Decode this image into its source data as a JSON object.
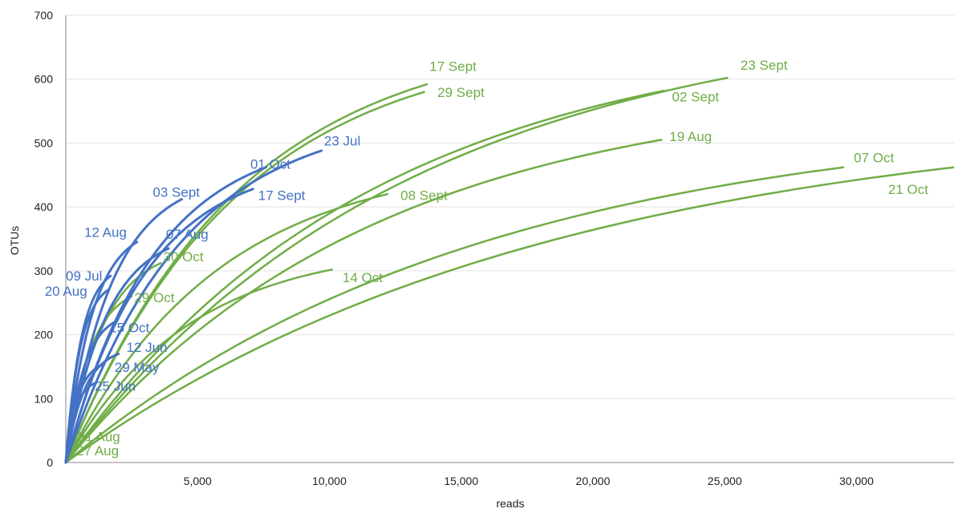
{
  "chart_data": {
    "type": "line",
    "title": "",
    "xlabel": "reads",
    "ylabel": "OTUs",
    "xlim": [
      0,
      33700
    ],
    "ylim": [
      0,
      700
    ],
    "xticks": [
      5000,
      10000,
      15000,
      20000,
      25000,
      30000
    ],
    "xtick_labels": [
      "5,000",
      "10,000",
      "15,000",
      "20,000",
      "25,000",
      "30,000"
    ],
    "yticks": [
      0,
      100,
      200,
      300,
      400,
      500,
      600,
      700
    ],
    "ytick_labels": [
      "0",
      "100",
      "200",
      "300",
      "400",
      "500",
      "600",
      "700"
    ],
    "grid": "horizontal",
    "legend": "none",
    "colors": {
      "blue": "#4472C4",
      "green": "#70AD47",
      "grid": "#e3e3e3",
      "axis": "#888888"
    },
    "series": [
      {
        "name": "17 Sept",
        "color": "green",
        "end_x": 13700,
        "end_y": 592
      },
      {
        "name": "29 Sept",
        "color": "green",
        "end_x": 13600,
        "end_y": 580
      },
      {
        "name": "23 Sept",
        "color": "green",
        "end_x": 25100,
        "end_y": 602
      },
      {
        "name": "02 Sept",
        "color": "green",
        "end_x": 22700,
        "end_y": 582
      },
      {
        "name": "19 Aug",
        "color": "green",
        "end_x": 22600,
        "end_y": 505
      },
      {
        "name": "07 Oct",
        "color": "green",
        "end_x": 29500,
        "end_y": 462
      },
      {
        "name": "21 Oct",
        "color": "green",
        "end_x": 33700,
        "end_y": 462
      },
      {
        "name": "08 Sept",
        "color": "green",
        "end_x": 12200,
        "end_y": 420
      },
      {
        "name": "14 Oct",
        "color": "green",
        "end_x": 10100,
        "end_y": 302
      },
      {
        "name": "30 Oct",
        "color": "green",
        "end_x": 3600,
        "end_y": 312
      },
      {
        "name": "29 Oct",
        "color": "green",
        "end_x": 2500,
        "end_y": 260
      },
      {
        "name": "21 Aug",
        "color": "green",
        "end_x": 400,
        "end_y": 30
      },
      {
        "name": "27 Aug",
        "color": "green",
        "end_x": 300,
        "end_y": 15
      },
      {
        "name": "23 Jul",
        "color": "blue",
        "end_x": 9700,
        "end_y": 488
      },
      {
        "name": "01 Oct",
        "color": "blue",
        "end_x": 7600,
        "end_y": 462
      },
      {
        "name": "17 Sept",
        "color": "blue",
        "end_x": 7100,
        "end_y": 428
      },
      {
        "name": "03 Sept",
        "color": "blue",
        "end_x": 4400,
        "end_y": 412
      },
      {
        "name": "12 Aug",
        "color": "blue",
        "end_x": 2700,
        "end_y": 345
      },
      {
        "name": "07 Aug",
        "color": "blue",
        "end_x": 3900,
        "end_y": 335
      },
      {
        "name": "09 Jul",
        "color": "blue",
        "end_x": 1700,
        "end_y": 292
      },
      {
        "name": "20 Aug",
        "color": "blue",
        "end_x": 1600,
        "end_y": 270
      },
      {
        "name": "15 Oct",
        "color": "blue",
        "end_x": 1950,
        "end_y": 222
      },
      {
        "name": "12 Jun",
        "color": "blue",
        "end_x": 2000,
        "end_y": 170
      },
      {
        "name": "29 May",
        "color": "blue",
        "end_x": 1350,
        "end_y": 152
      },
      {
        "name": "25 Jun",
        "color": "blue",
        "end_x": 1150,
        "end_y": 125
      }
    ],
    "labels": [
      {
        "text": "17 Sept",
        "color": "green",
        "x": 13800,
        "y": 613
      },
      {
        "text": "29 Sept",
        "color": "green",
        "x": 14100,
        "y": 572
      },
      {
        "text": "23 Sept",
        "color": "green",
        "x": 25600,
        "y": 615
      },
      {
        "text": "02 Sept",
        "color": "green",
        "x": 23000,
        "y": 565
      },
      {
        "text": "19 Aug",
        "color": "green",
        "x": 22900,
        "y": 503
      },
      {
        "text": "07 Oct",
        "color": "green",
        "x": 29900,
        "y": 470
      },
      {
        "text": "21 Oct",
        "color": "green",
        "x": 31200,
        "y": 420
      },
      {
        "text": "08 Sept",
        "color": "green",
        "x": 12700,
        "y": 411
      },
      {
        "text": "14 Oct",
        "color": "green",
        "x": 10500,
        "y": 282
      },
      {
        "text": "30 Oct",
        "color": "green",
        "x": 3700,
        "y": 315
      },
      {
        "text": "29 Oct",
        "color": "green",
        "x": 2600,
        "y": 251
      },
      {
        "text": "21 Aug",
        "color": "green",
        "x": 450,
        "y": 33
      },
      {
        "text": "27 Aug",
        "color": "green",
        "x": 400,
        "y": 11
      },
      {
        "text": "23 Jul",
        "color": "blue",
        "x": 9800,
        "y": 496
      },
      {
        "text": "01 Oct",
        "color": "blue",
        "x": 7000,
        "y": 460
      },
      {
        "text": "17 Sept",
        "color": "blue",
        "x": 7300,
        "y": 411
      },
      {
        "text": "03 Sept",
        "color": "blue",
        "x": 3300,
        "y": 416
      },
      {
        "text": "12 Aug",
        "color": "blue",
        "x": 700,
        "y": 353
      },
      {
        "text": "07 Aug",
        "color": "blue",
        "x": 3800,
        "y": 350
      },
      {
        "text": "09 Jul",
        "color": "blue",
        "x": 0,
        "y": 285
      },
      {
        "text": "20 Aug",
        "color": "blue",
        "x": -800,
        "y": 261
      },
      {
        "text": "15 Oct",
        "color": "blue",
        "x": 1650,
        "y": 204
      },
      {
        "text": "12 Jun",
        "color": "blue",
        "x": 2300,
        "y": 173
      },
      {
        "text": "29 May",
        "color": "blue",
        "x": 1850,
        "y": 142
      },
      {
        "text": "25 Jun",
        "color": "blue",
        "x": 1100,
        "y": 112
      }
    ]
  }
}
